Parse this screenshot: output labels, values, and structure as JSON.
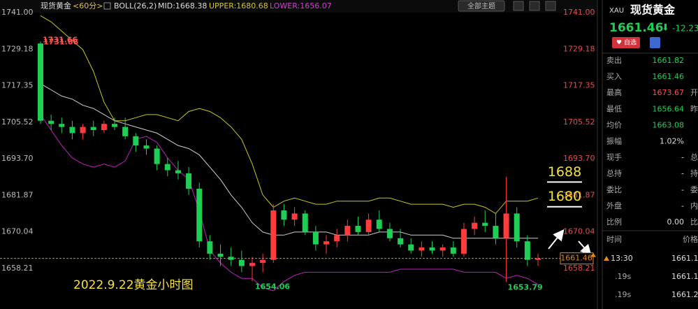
{
  "header": {
    "symbol": "现货黄金",
    "period": "<60分>",
    "indicator": "BOLL(26,2)",
    "mid": "MID:1668.38",
    "upper": "UPPER:1680.68",
    "lower": "LOWER:1656.07",
    "theme_button": "全部主题"
  },
  "chart": {
    "type": "candlestick",
    "ylim": [
      1645.1,
      1741
    ],
    "yticks": [
      {
        "value": 1741,
        "label": "1741.00"
      },
      {
        "value": 1729.18,
        "label": "1729.18"
      },
      {
        "value": 1717.35,
        "label": "1717.35"
      },
      {
        "value": 1705.52,
        "label": "1705.52"
      },
      {
        "value": 1693.7,
        "label": "1693.70"
      },
      {
        "value": 1681.87,
        "label": "1681.87"
      },
      {
        "value": 1670.04,
        "label": "1670.04"
      },
      {
        "value": 1658.21,
        "label": "1658.21"
      }
    ],
    "up_color": "#ff3b3b",
    "down_color": "#1fcf55",
    "open": [
      1731,
      1706,
      1705,
      1704,
      1702,
      1704,
      1703,
      1705,
      1704,
      1701,
      1698,
      1697,
      1692,
      1690,
      1689,
      1684,
      1667,
      1663,
      1662,
      1661,
      1659,
      1660,
      1661,
      1677,
      1674,
      1676,
      1670,
      1666,
      1667,
      1669,
      1672,
      1670,
      1674,
      1671,
      1668,
      1666,
      1664,
      1665,
      1664,
      1665,
      1663,
      1671,
      1673,
      1672,
      1668,
      1676,
      1667,
      1661
    ],
    "high": [
      1731.66,
      1708,
      1707,
      1706,
      1705,
      1706,
      1706,
      1707,
      1707,
      1702,
      1700,
      1698,
      1694,
      1693,
      1691,
      1686,
      1669,
      1666,
      1665,
      1664,
      1662,
      1663,
      1679,
      1679,
      1678,
      1677,
      1672,
      1669,
      1671,
      1674,
      1675,
      1676,
      1677,
      1673,
      1671,
      1668,
      1667,
      1667,
      1666,
      1667,
      1673,
      1675,
      1677,
      1676,
      1687.92,
      1678,
      1669,
      1663
    ],
    "low": [
      1705,
      1703,
      1702,
      1700,
      1700,
      1701,
      1702,
      1703,
      1700,
      1696,
      1695,
      1690,
      1688,
      1687,
      1682,
      1665,
      1661,
      1659,
      1659,
      1657,
      1654.06,
      1657,
      1660,
      1672,
      1672,
      1669,
      1664,
      1663,
      1665,
      1667,
      1669,
      1669,
      1670,
      1667,
      1665,
      1663,
      1662,
      1663,
      1662,
      1662,
      1662,
      1669,
      1670,
      1666,
      1653.79,
      1665,
      1659,
      1659
    ],
    "close": [
      1706,
      1705,
      1704,
      1702,
      1704,
      1703,
      1705,
      1704,
      1701,
      1698,
      1697,
      1692,
      1690,
      1689,
      1684,
      1667,
      1663,
      1662,
      1661,
      1659,
      1660,
      1661,
      1677,
      1674,
      1676,
      1670,
      1666,
      1667,
      1669,
      1672,
      1670,
      1674,
      1671,
      1668,
      1666,
      1664,
      1665,
      1664,
      1665,
      1663,
      1671,
      1673,
      1672,
      1668,
      1676,
      1667,
      1661,
      1661.46
    ],
    "series": [
      {
        "color": "#c8c81e",
        "values": [
          1740,
          1738,
          1735,
          1732,
          1729,
          1722,
          1712,
          1706,
          1706,
          1707,
          1708,
          1708,
          1707,
          1706,
          1709,
          1710,
          1709,
          1707,
          1704,
          1700,
          1692,
          1682,
          1678,
          1680,
          1681,
          1680,
          1679,
          1679,
          1680,
          1680,
          1680,
          1680,
          1681,
          1681,
          1680,
          1679,
          1679,
          1679,
          1679,
          1678,
          1679,
          1679,
          1678,
          1676,
          1680,
          1680,
          1680,
          1681
        ]
      },
      {
        "color": "#d0d0d0",
        "values": [
          1718,
          1716,
          1714,
          1713,
          1711,
          1710,
          1708,
          1706,
          1705,
          1704,
          1703,
          1702,
          1700,
          1698,
          1697,
          1695,
          1691,
          1687,
          1682,
          1678,
          1673,
          1670,
          1669,
          1669,
          1670,
          1670,
          1670,
          1670,
          1669,
          1669,
          1669,
          1669,
          1670,
          1670,
          1670,
          1669,
          1669,
          1669,
          1669,
          1668,
          1668,
          1668,
          1668,
          1668,
          1668,
          1668,
          1668,
          1668
        ]
      },
      {
        "color": "#c020c0",
        "values": [
          1708,
          1703,
          1698,
          1694,
          1692,
          1691,
          1692,
          1691,
          1693,
          1700,
          1701,
          1699,
          1694,
          1690,
          1687,
          1677,
          1664,
          1660,
          1657,
          1655,
          1655,
          1652,
          1651,
          1654,
          1656,
          1657,
          1657,
          1657,
          1657,
          1657,
          1657,
          1657,
          1657,
          1657,
          1658,
          1658,
          1658,
          1658,
          1658,
          1658,
          1657,
          1657,
          1657,
          1657,
          1655,
          1656,
          1655,
          1653
        ]
      }
    ],
    "levels": [
      1688,
      1680
    ],
    "caption": "2022.9.22黄金小时图"
  },
  "panel": {
    "code": "XAU",
    "name": "现货黄金",
    "price": "1661.46",
    "change": "-12.23",
    "watch_button": "自选",
    "rows": [
      [
        "卖出",
        "1661.82",
        ""
      ],
      [
        "买入",
        "1661.46",
        ""
      ],
      [
        "最高",
        "1673.67",
        "开"
      ],
      [
        "最低",
        "1656.64",
        "昨"
      ],
      [
        "均价",
        "1663.08",
        ""
      ],
      [
        "振幅",
        "1.02%",
        ""
      ],
      [
        "现手",
        "-",
        "总"
      ],
      [
        "总持",
        "-",
        "持"
      ],
      [
        "委比",
        "-",
        "委"
      ],
      [
        "外盘",
        "-",
        "内"
      ],
      [
        "比例",
        "0.00",
        "比"
      ]
    ],
    "ticks_header": [
      "时间",
      "价格"
    ],
    "ticks": [
      [
        "13:30",
        "1661.1"
      ],
      [
        ".19s",
        "1661.1"
      ],
      [
        ".19s",
        "1661.2"
      ]
    ]
  }
}
